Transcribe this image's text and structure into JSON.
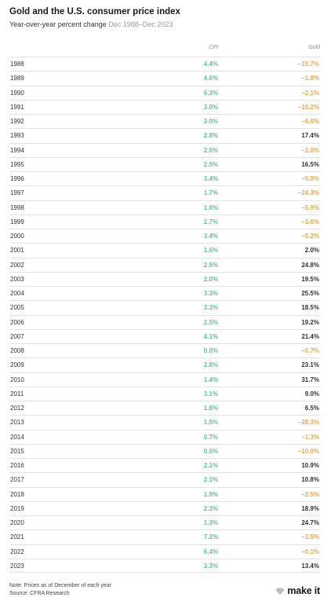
{
  "header": {
    "title": "Gold and the U.S. consumer price index",
    "subtitle": "Year-over-year percent change",
    "date_range": "Dec 1988–Dec 2023"
  },
  "columns": {
    "cpi": "CPI",
    "gold": "Gold"
  },
  "colors": {
    "cpi": "#5cc1a0",
    "gold_negative": "#e0a95c",
    "gold_positive": "#333333"
  },
  "chart_data": {
    "type": "table",
    "title": "Gold and the U.S. consumer price index",
    "subtitle": "Year-over-year percent change Dec 1988–Dec 2023",
    "columns": [
      "",
      "CPI",
      "Gold"
    ],
    "rows": [
      {
        "year": "1988",
        "cpi": "4.4%",
        "gold": "−15.7%",
        "gold_sign": "neg"
      },
      {
        "year": "1989",
        "cpi": "4.6%",
        "gold": "−1.8%",
        "gold_sign": "neg"
      },
      {
        "year": "1990",
        "cpi": "6.3%",
        "gold": "−2.1%",
        "gold_sign": "neg"
      },
      {
        "year": "1991",
        "cpi": "3.0%",
        "gold": "−10.2%",
        "gold_sign": "neg"
      },
      {
        "year": "1992",
        "cpi": "3.0%",
        "gold": "−6.0%",
        "gold_sign": "neg"
      },
      {
        "year": "1993",
        "cpi": "2.8%",
        "gold": "17.4%",
        "gold_sign": "pos"
      },
      {
        "year": "1994",
        "cpi": "2.6%",
        "gold": "−2.0%",
        "gold_sign": "neg"
      },
      {
        "year": "1995",
        "cpi": "2.5%",
        "gold": "16.5%",
        "gold_sign": "pos"
      },
      {
        "year": "1996",
        "cpi": "3.4%",
        "gold": "−5.9%",
        "gold_sign": "neg"
      },
      {
        "year": "1997",
        "cpi": "1.7%",
        "gold": "−24.3%",
        "gold_sign": "neg"
      },
      {
        "year": "1998",
        "cpi": "1.6%",
        "gold": "−5.9%",
        "gold_sign": "neg"
      },
      {
        "year": "1999",
        "cpi": "2.7%",
        "gold": "−3.6%",
        "gold_sign": "neg"
      },
      {
        "year": "2000",
        "cpi": "3.4%",
        "gold": "−5.2%",
        "gold_sign": "neg"
      },
      {
        "year": "2001",
        "cpi": "1.6%",
        "gold": "2.0%",
        "gold_sign": "pos"
      },
      {
        "year": "2002",
        "cpi": "2.5%",
        "gold": "24.8%",
        "gold_sign": "pos"
      },
      {
        "year": "2003",
        "cpi": "2.0%",
        "gold": "19.5%",
        "gold_sign": "pos"
      },
      {
        "year": "2004",
        "cpi": "3.3%",
        "gold": "25.5%",
        "gold_sign": "pos"
      },
      {
        "year": "2005",
        "cpi": "3.3%",
        "gold": "18.5%",
        "gold_sign": "pos"
      },
      {
        "year": "2006",
        "cpi": "2.5%",
        "gold": "19.2%",
        "gold_sign": "pos"
      },
      {
        "year": "2007",
        "cpi": "4.1%",
        "gold": "21.4%",
        "gold_sign": "pos"
      },
      {
        "year": "2008",
        "cpi": "0.0%",
        "gold": "−0.7%",
        "gold_sign": "neg"
      },
      {
        "year": "2009",
        "cpi": "2.8%",
        "gold": "23.1%",
        "gold_sign": "pos"
      },
      {
        "year": "2010",
        "cpi": "1.4%",
        "gold": "31.7%",
        "gold_sign": "pos"
      },
      {
        "year": "2011",
        "cpi": "3.1%",
        "gold": "9.0%",
        "gold_sign": "pos"
      },
      {
        "year": "2012",
        "cpi": "1.8%",
        "gold": "6.5%",
        "gold_sign": "pos"
      },
      {
        "year": "2013",
        "cpi": "1.5%",
        "gold": "−28.3%",
        "gold_sign": "neg"
      },
      {
        "year": "2014",
        "cpi": "0.7%",
        "gold": "−1.3%",
        "gold_sign": "neg"
      },
      {
        "year": "2015",
        "cpi": "0.6%",
        "gold": "−10.0%",
        "gold_sign": "neg"
      },
      {
        "year": "2016",
        "cpi": "2.1%",
        "gold": "10.9%",
        "gold_sign": "pos"
      },
      {
        "year": "2017",
        "cpi": "2.1%",
        "gold": "10.8%",
        "gold_sign": "pos"
      },
      {
        "year": "2018",
        "cpi": "1.9%",
        "gold": "−2.5%",
        "gold_sign": "neg"
      },
      {
        "year": "2019",
        "cpi": "2.3%",
        "gold": "18.9%",
        "gold_sign": "pos"
      },
      {
        "year": "2020",
        "cpi": "1.3%",
        "gold": "24.7%",
        "gold_sign": "pos"
      },
      {
        "year": "2021",
        "cpi": "7.2%",
        "gold": "−3.5%",
        "gold_sign": "neg"
      },
      {
        "year": "2022",
        "cpi": "6.4%",
        "gold": "−0.1%",
        "gold_sign": "neg"
      },
      {
        "year": "2023",
        "cpi": "3.3%",
        "gold": "13.4%",
        "gold_sign": "pos"
      }
    ]
  },
  "footer": {
    "note": "Note: Prices as of December of each year",
    "source": "Source: CFRA Research",
    "brand": "make it"
  }
}
